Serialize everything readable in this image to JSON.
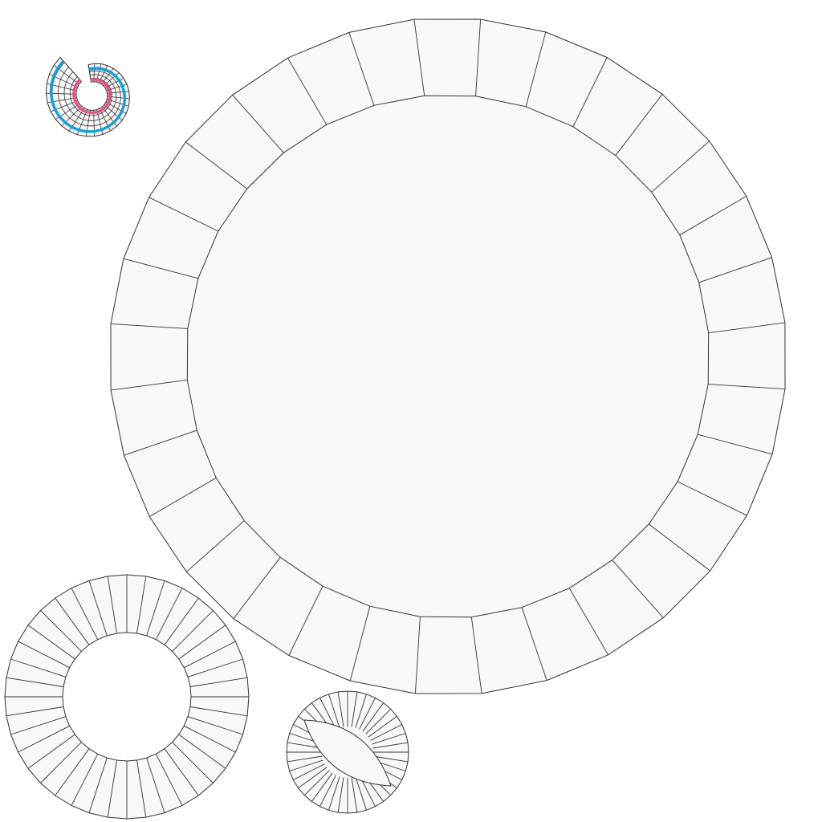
{
  "diagram": {
    "kind": "uv-layout",
    "colors": {
      "background": "#ffffff",
      "face_fill": "#f8f8f8",
      "edge": "#333333",
      "seam_outer": "#1a9fd8",
      "seam_inner": "#e8508c"
    },
    "islands": [
      {
        "name": "large-ring",
        "segments": 32
      },
      {
        "name": "medium-ring",
        "segments": 40
      },
      {
        "name": "small-ring-with-lens",
        "segments": 40
      },
      {
        "name": "spiral-shell",
        "segments": 28,
        "rings": 5
      }
    ]
  }
}
